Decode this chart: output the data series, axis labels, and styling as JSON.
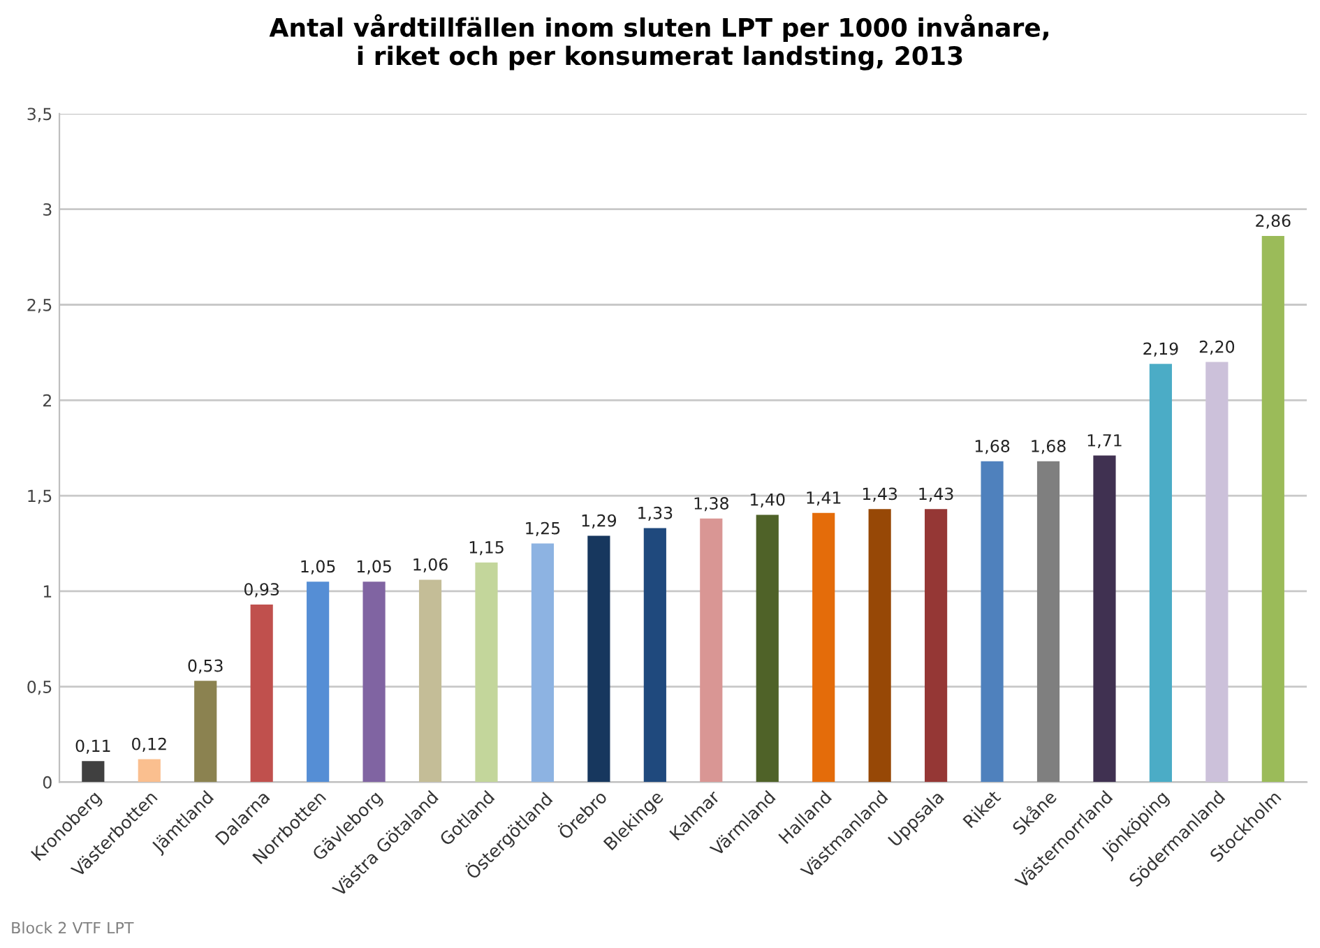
{
  "chart_data": {
    "type": "bar",
    "title": "Antal vårdtillfällen inom sluten LPT per 1000 invånare,\ni riket och per konsumerat landsting, 2013",
    "categories": [
      "Kronoberg",
      "Västerbotten",
      "Jämtland",
      "Dalarna",
      "Norrbotten",
      "Gävleborg",
      "Västra Götaland",
      "Gotland",
      "Östergötland",
      "Örebro",
      "Blekinge",
      "Kalmar",
      "Värmland",
      "Halland",
      "Västmanland",
      "Uppsala",
      "Riket",
      "Skåne",
      "Västernorrland",
      "Jönköping",
      "Södermanland",
      "Stockholm"
    ],
    "values": [
      0.11,
      0.12,
      0.53,
      0.93,
      1.05,
      1.05,
      1.06,
      1.15,
      1.25,
      1.29,
      1.33,
      1.38,
      1.4,
      1.41,
      1.43,
      1.43,
      1.68,
      1.68,
      1.71,
      2.19,
      2.2,
      2.86
    ],
    "value_labels": [
      "0,11",
      "0,12",
      "0,53",
      "0,93",
      "1,05",
      "1,05",
      "1,06",
      "1,15",
      "1,25",
      "1,29",
      "1,33",
      "1,38",
      "1,40",
      "1,41",
      "1,43",
      "1,43",
      "1,68",
      "1,68",
      "1,71",
      "2,19",
      "2,20",
      "2,86"
    ],
    "colors": [
      "#404040",
      "#fabf8f",
      "#8b8250",
      "#c0504d",
      "#558ed5",
      "#8064a2",
      "#c4bd97",
      "#c3d69b",
      "#8db3e2",
      "#17375e",
      "#1f497d",
      "#d99694",
      "#4f6228",
      "#e46c0a",
      "#974806",
      "#953735",
      "#4f81bd",
      "#7f7f7f",
      "#403151",
      "#4bacc6",
      "#ccc1da",
      "#9bbb59"
    ],
    "ylim": [
      0,
      3.5
    ],
    "yticks": [
      0,
      {
        "value": 0.5,
        "label": "0,5"
      },
      1,
      {
        "value": 1.5,
        "label": "1,5"
      },
      2,
      {
        "value": 2.5,
        "label": "2,5"
      },
      3,
      {
        "value": 3.5,
        "label": "3,5"
      }
    ],
    "grid": "y",
    "annotations": [
      "Block 2 VTF LPT"
    ]
  }
}
